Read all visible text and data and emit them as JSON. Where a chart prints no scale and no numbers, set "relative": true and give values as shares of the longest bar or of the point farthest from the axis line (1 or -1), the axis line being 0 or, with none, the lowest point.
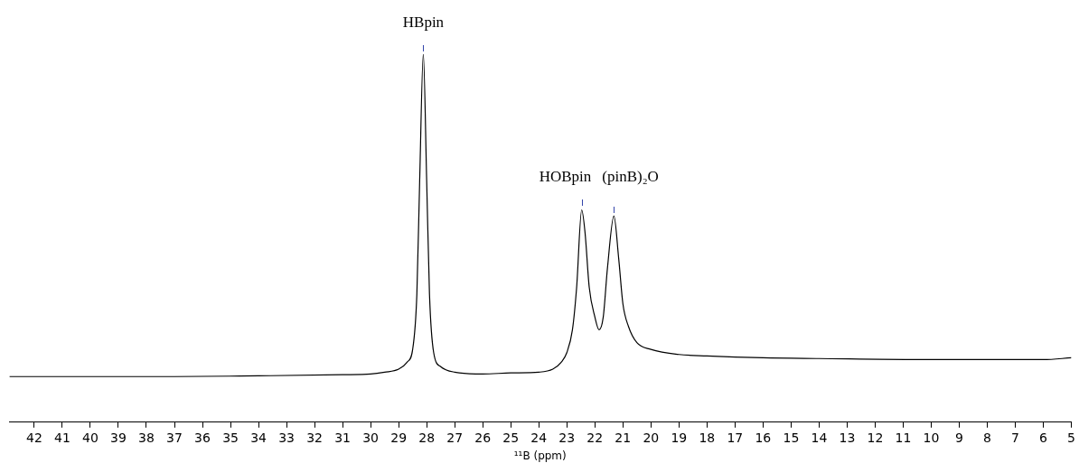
{
  "chart_data": {
    "type": "line",
    "relative": true,
    "xlabel": "¹¹B (ppm)",
    "xlim": [
      42.9,
      5
    ],
    "xticks": [
      42,
      41,
      40,
      39,
      38,
      37,
      36,
      35,
      34,
      33,
      32,
      31,
      30,
      29,
      28,
      27,
      26,
      25,
      24,
      23,
      22,
      21,
      20,
      19,
      18,
      17,
      16,
      15,
      14,
      13,
      12,
      11,
      10,
      9,
      8,
      7,
      6,
      5
    ],
    "grid": false,
    "legend": false,
    "marker": "none",
    "line_style": "solid",
    "tick_labels": "x",
    "annotations": [
      {
        "text": "HBpin",
        "x": 28.12,
        "y": 1
      },
      {
        "text": "HOBpin",
        "x": 22.47,
        "y": 0.58
      },
      {
        "text": "(pinB)₂O",
        "x": 21.32,
        "y": 0.56
      }
    ],
    "series": [
      {
        "color": "#000000",
        "x": [
          42.88,
          40,
          37,
          34,
          31,
          30,
          29.5,
          29,
          28.7,
          28.5,
          28.35,
          28.25,
          28.12,
          28.0,
          27.9,
          27.75,
          27.5,
          27,
          26,
          25,
          24,
          23.5,
          23.2,
          23,
          22.8,
          22.65,
          22.47,
          22.35,
          22.2,
          22.0,
          21.85,
          21.7,
          21.55,
          21.32,
          21.15,
          21,
          20.8,
          20.5,
          20,
          19,
          18,
          16,
          14,
          10,
          6,
          5
        ],
        "values": [
          0.124,
          0.124,
          0.124,
          0.126,
          0.129,
          0.131,
          0.136,
          0.144,
          0.163,
          0.198,
          0.348,
          0.656,
          1.0,
          0.656,
          0.348,
          0.189,
          0.151,
          0.136,
          0.131,
          0.134,
          0.136,
          0.144,
          0.163,
          0.189,
          0.251,
          0.366,
          0.577,
          0.515,
          0.366,
          0.286,
          0.251,
          0.286,
          0.419,
          0.56,
          0.445,
          0.322,
          0.26,
          0.216,
          0.198,
          0.184,
          0.18,
          0.175,
          0.173,
          0.17,
          0.17,
          0.175
        ]
      }
    ]
  }
}
